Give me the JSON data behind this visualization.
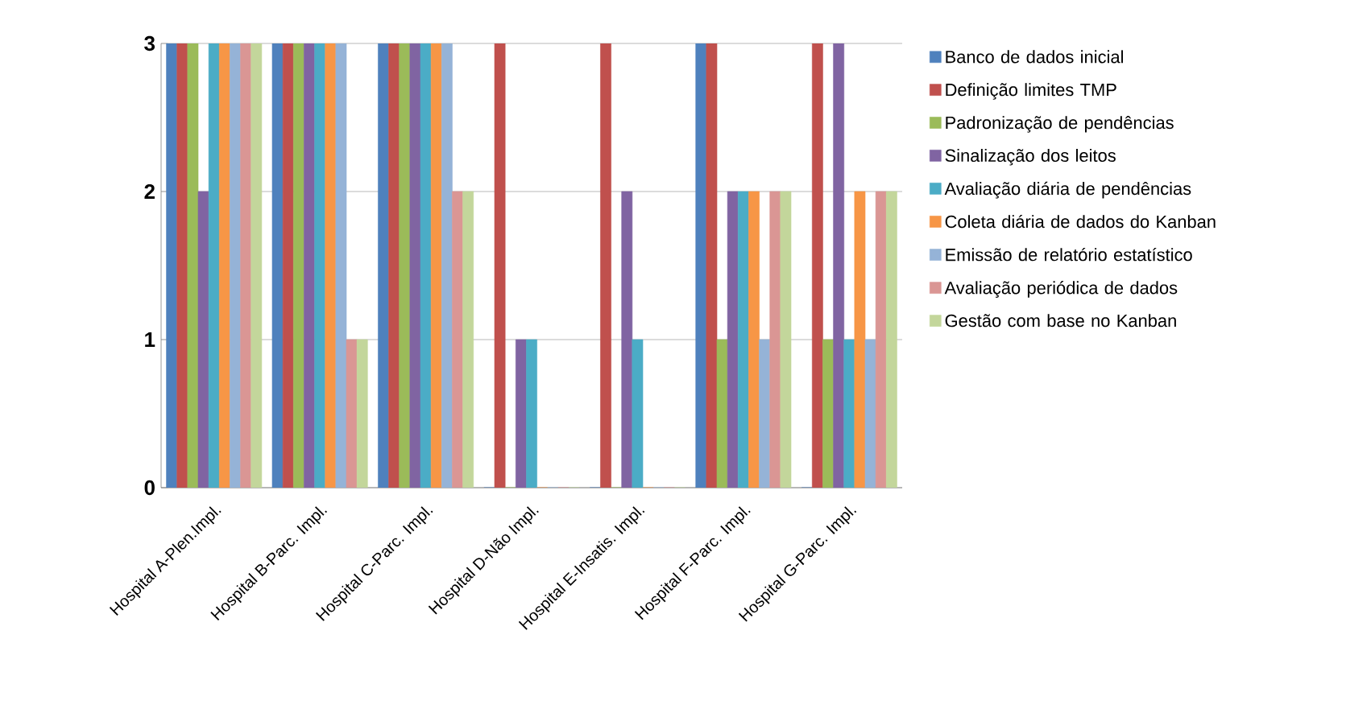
{
  "chart_data": {
    "type": "bar",
    "categories": [
      "Hospital A-Plen.Impl.",
      "Hospital B-Parc. Impl.",
      "Hospital C-Parc. Impl.",
      "Hospital D-Não Impl.",
      "Hospital E-Insatis. Impl.",
      "Hospital F-Parc. Impl.",
      "Hospital G-Parc. Impl."
    ],
    "series": [
      {
        "name": "Banco de dados inicial",
        "color": "#4f81bd",
        "values": [
          3,
          3,
          3,
          0,
          0,
          3,
          0
        ]
      },
      {
        "name": "Definição limites TMP",
        "color": "#c0504d",
        "values": [
          3,
          3,
          3,
          3,
          3,
          3,
          3
        ]
      },
      {
        "name": "Padronização de pendências",
        "color": "#9bbb59",
        "values": [
          3,
          3,
          3,
          0,
          0,
          1,
          1
        ]
      },
      {
        "name": "Sinalização dos leitos",
        "color": "#8064a2",
        "values": [
          2,
          3,
          3,
          1,
          2,
          2,
          3
        ]
      },
      {
        "name": "Avaliação diária de pendências",
        "color": "#4bacc6",
        "values": [
          3,
          3,
          3,
          1,
          1,
          2,
          1
        ]
      },
      {
        "name": "Coleta diária de dados do Kanban",
        "color": "#f79646",
        "values": [
          3,
          3,
          3,
          0,
          0,
          2,
          2
        ]
      },
      {
        "name": "Emissão de relatório estatístico",
        "color": "#95b3d7",
        "values": [
          3,
          3,
          3,
          0,
          0,
          1,
          1
        ]
      },
      {
        "name": "Avaliação periódica de dados",
        "color": "#da9694",
        "values": [
          3,
          1,
          2,
          0,
          0,
          2,
          2
        ]
      },
      {
        "name": "Gestão com base no Kanban",
        "color": "#c3d69b",
        "values": [
          3,
          1,
          2,
          0,
          0,
          2,
          2
        ]
      }
    ],
    "ylim": [
      0,
      3
    ],
    "yticks": [
      0,
      1,
      2,
      3
    ],
    "grid": "y",
    "legend": "right"
  }
}
